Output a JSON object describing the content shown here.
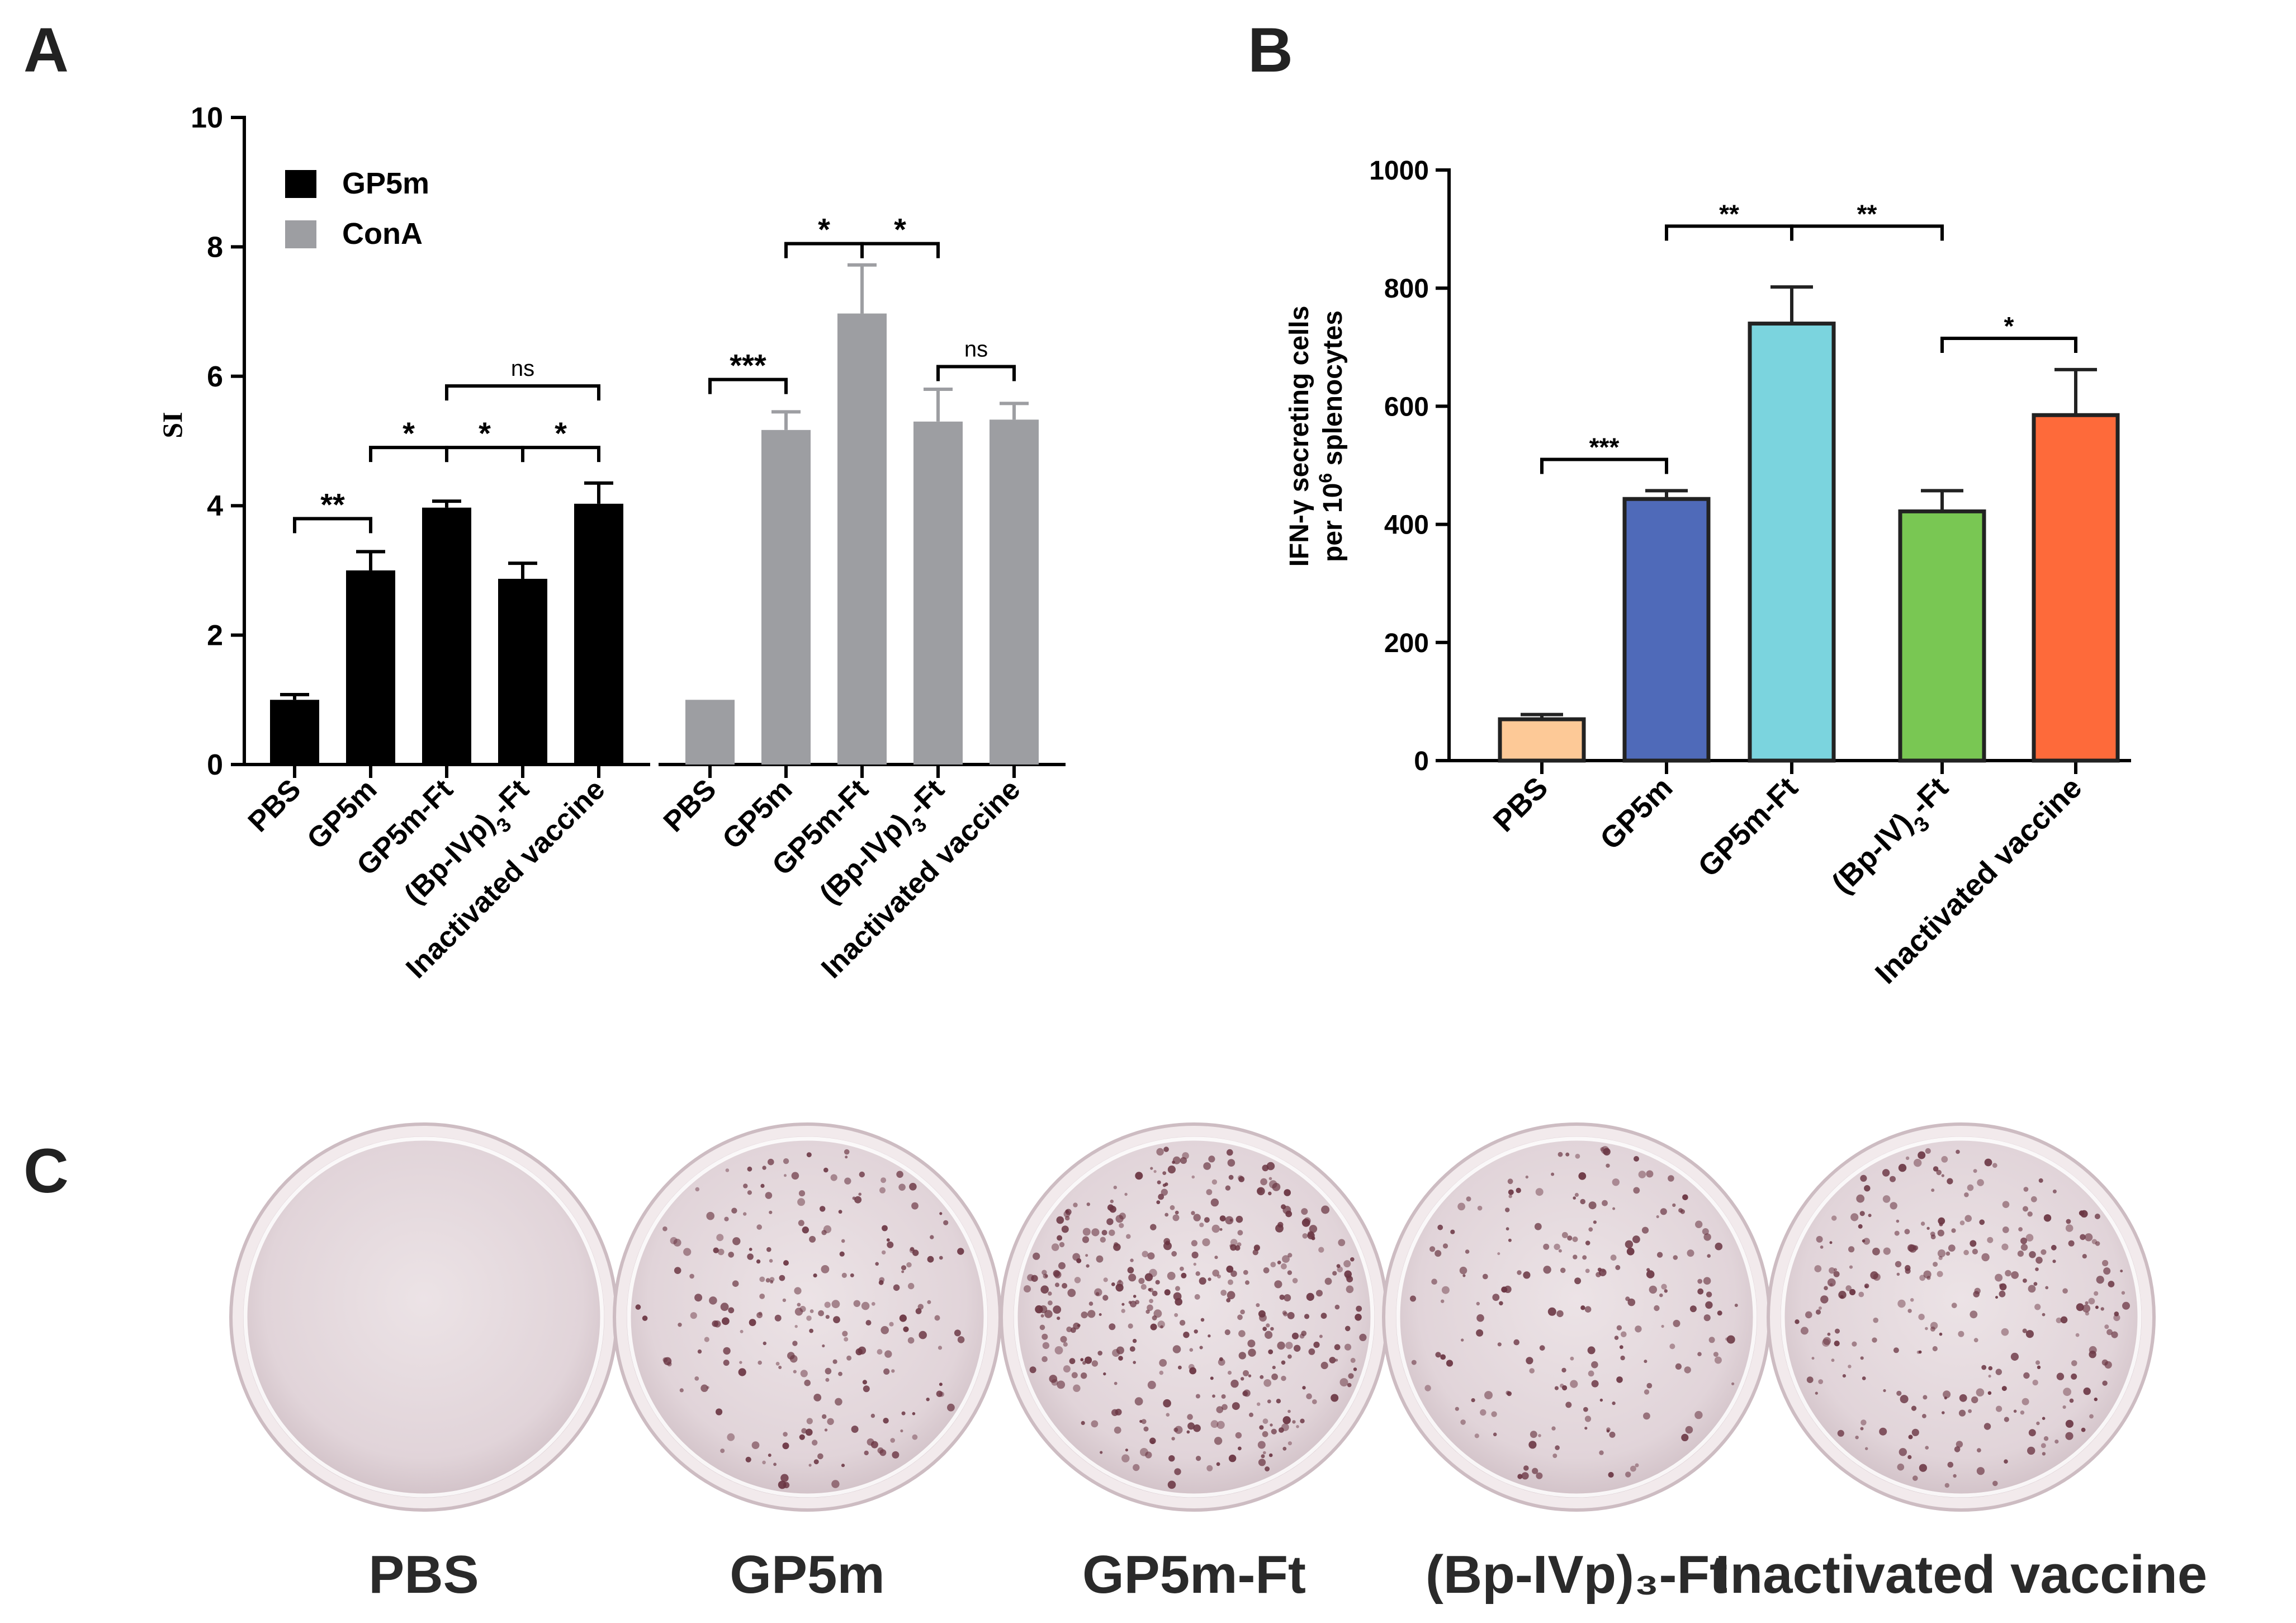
{
  "panel_labels": {
    "a": "A",
    "b": "B",
    "c": "C"
  },
  "colors": {
    "gp5m": "#000000",
    "cona": "#9d9ea2",
    "b_bars": [
      "#fdc997",
      "#4f6ab9",
      "#7bd4de",
      "#79c753",
      "#fe6a3a"
    ],
    "plate_rim": "#f2eaec",
    "plate_well": "#e3d6da",
    "spot": "#6a3542"
  },
  "chart_data": [
    {
      "type": "bar",
      "panel": "A",
      "categories": [
        "PBS",
        "GP5m",
        "GP5m-Ft",
        "(Bp-IVp)₃-Ft",
        "Inactivated vaccine"
      ],
      "category_label_parts": [
        {
          "main": "PBS"
        },
        {
          "main": "GP5m"
        },
        {
          "main": "GP5m-Ft"
        },
        {
          "main": "(Bp-IVp)",
          "sub": "3",
          "tail": "-Ft"
        },
        {
          "main": "Inactivated vaccine"
        }
      ],
      "series": [
        {
          "name": "GP5m",
          "values": [
            1.0,
            3.0,
            3.97,
            2.87,
            4.03
          ],
          "errors": [
            0.08,
            0.29,
            0.1,
            0.24,
            0.32
          ]
        },
        {
          "name": "ConA",
          "values": [
            1.0,
            5.17,
            6.97,
            5.3,
            5.33
          ],
          "errors": [
            0.0,
            0.28,
            0.75,
            0.5,
            0.25
          ]
        }
      ],
      "ylabel": "SI",
      "ylim": [
        0,
        10
      ],
      "yticks": [
        0,
        2,
        4,
        6,
        8,
        10
      ],
      "legend": [
        "GP5m",
        "ConA"
      ],
      "legend_position": "top-left",
      "significance": [
        {
          "series": 0,
          "from": 0,
          "to": 1,
          "label": "**",
          "level": 3.8
        },
        {
          "series": 0,
          "from": 1,
          "to": 2,
          "label": "*",
          "level": 4.9
        },
        {
          "series": 0,
          "from": 2,
          "to": 3,
          "label": "*",
          "level": 4.9
        },
        {
          "series": 0,
          "from": 3,
          "to": 4,
          "label": "*",
          "level": 4.9
        },
        {
          "series": 0,
          "from": 2,
          "to": 4,
          "label": "ns",
          "level": 5.85
        },
        {
          "series": 1,
          "from": 0,
          "to": 1,
          "label": "***",
          "level": 5.95
        },
        {
          "series": 1,
          "from": 1,
          "to": 2,
          "label": "*",
          "level": 8.05
        },
        {
          "series": 1,
          "from": 2,
          "to": 3,
          "label": "*",
          "level": 8.05
        },
        {
          "series": 1,
          "from": 3,
          "to": 4,
          "label": "ns",
          "level": 6.15
        }
      ]
    },
    {
      "type": "bar",
      "panel": "B",
      "categories": [
        "PBS",
        "GP5m",
        "GP5m-Ft",
        "(Bp-IV)₃-Ft",
        "Inactivated vaccine"
      ],
      "category_label_parts": [
        {
          "main": "PBS"
        },
        {
          "main": "GP5m"
        },
        {
          "main": "GP5m-Ft"
        },
        {
          "main": "(Bp-IV)",
          "sub": "3",
          "tail": "-Ft"
        },
        {
          "main": "Inactivated vaccine"
        }
      ],
      "values": [
        70,
        443,
        740,
        422,
        585
      ],
      "errors": [
        8,
        14,
        62,
        35,
        77
      ],
      "ylabel_line1": "IFN-γ secreting cells",
      "ylabel_line2_prefix": "per 10",
      "ylabel_line2_sup": "6",
      "ylabel_line2_suffix": " splenocytes",
      "ylim": [
        0,
        1000
      ],
      "yticks": [
        0,
        200,
        400,
        600,
        800,
        1000
      ],
      "significance": [
        {
          "from": 0,
          "to": 1,
          "label": "***",
          "level": 510
        },
        {
          "from": 1,
          "to": 2,
          "label": "**",
          "level": 905
        },
        {
          "from": 2,
          "to": 3,
          "label": "**",
          "level": 905
        },
        {
          "from": 3,
          "to": 4,
          "label": "*",
          "level": 715
        }
      ]
    }
  ],
  "panel_c": {
    "plates": [
      {
        "label": "PBS",
        "spots": 0
      },
      {
        "label": "GP5m",
        "spots": 260
      },
      {
        "label": "GP5m-Ft",
        "spots": 480
      },
      {
        "label": "(Bp-IVp)₃-Ft",
        "spots": 230
      },
      {
        "label": "Inactivated vaccine",
        "spots": 340
      }
    ]
  }
}
